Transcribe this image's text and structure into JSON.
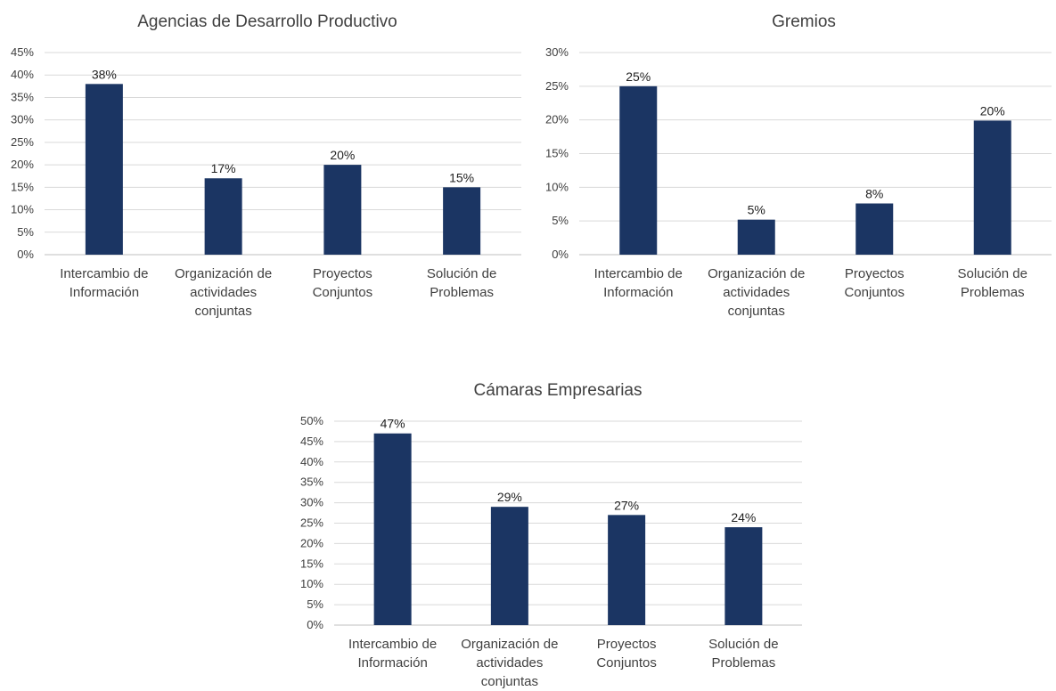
{
  "colors": {
    "bar": "#1b3563",
    "grid": "#d9d9d9",
    "text": "#404040"
  },
  "chart_data": [
    {
      "type": "bar",
      "title": "Agencias de Desarrollo Productivo",
      "categories": [
        [
          "Intercambio de",
          "Información"
        ],
        [
          "Organización de",
          "actividades",
          "conjuntas"
        ],
        [
          "Proyectos",
          "Conjuntos"
        ],
        [
          "Solución de",
          "Problemas"
        ]
      ],
      "values": [
        38,
        17,
        20,
        15
      ],
      "value_labels": [
        "38%",
        "17%",
        "20%",
        "15%"
      ],
      "yticks": [
        "0%",
        "5%",
        "10%",
        "15%",
        "20%",
        "25%",
        "30%",
        "35%",
        "40%",
        "45%"
      ],
      "ylim": [
        0,
        45
      ],
      "ystep": 5,
      "grid": true,
      "legend": "none"
    },
    {
      "type": "bar",
      "title": "Gremios",
      "categories": [
        [
          "Intercambio de",
          "Información"
        ],
        [
          "Organización de",
          "actividades",
          "conjuntas"
        ],
        [
          "Proyectos",
          "Conjuntos"
        ],
        [
          "Solución de",
          "Problemas"
        ]
      ],
      "values": [
        25,
        5.2,
        7.6,
        19.9
      ],
      "value_labels": [
        "25%",
        "5%",
        "8%",
        "20%"
      ],
      "yticks": [
        "0%",
        "5%",
        "10%",
        "15%",
        "20%",
        "25%",
        "30%"
      ],
      "ylim": [
        0,
        30
      ],
      "ystep": 5,
      "grid": true,
      "legend": "none"
    },
    {
      "type": "bar",
      "title": "Cámaras Empresarias",
      "categories": [
        [
          "Intercambio de",
          "Información"
        ],
        [
          "Organización de",
          "actividades",
          "conjuntas"
        ],
        [
          "Proyectos",
          "Conjuntos"
        ],
        [
          "Solución de",
          "Problemas"
        ]
      ],
      "values": [
        47,
        29,
        27,
        24
      ],
      "value_labels": [
        "47%",
        "29%",
        "27%",
        "24%"
      ],
      "yticks": [
        "0%",
        "5%",
        "10%",
        "15%",
        "20%",
        "25%",
        "30%",
        "35%",
        "40%",
        "45%",
        "50%"
      ],
      "ylim": [
        0,
        50
      ],
      "ystep": 5,
      "grid": true,
      "legend": "none"
    }
  ]
}
